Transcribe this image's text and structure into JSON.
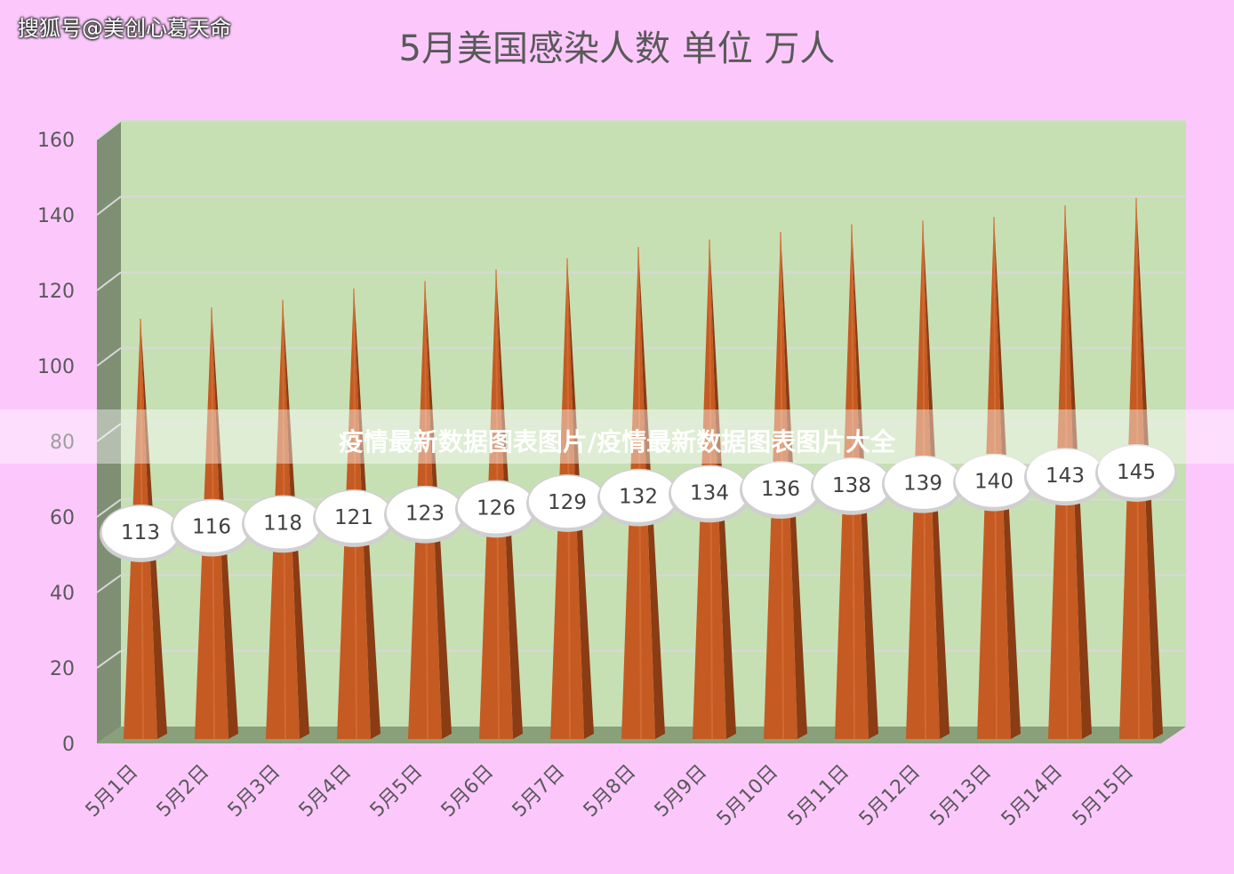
{
  "watermark": "搜狐号@美创心葛天命",
  "banner": "疫情最新数据图表图片/疫情最新数据图表图片大全",
  "chart_data": {
    "type": "bar",
    "title": "5月美国感染人数 单位 万人",
    "categories": [
      "5月1日",
      "5月2日",
      "5月3日",
      "5月4日",
      "5月5日",
      "5月6日",
      "5月7日",
      "5月8日",
      "5月9日",
      "5月10日",
      "5月11日",
      "5月12日",
      "5月13日",
      "5月14日",
      "5月15日"
    ],
    "values": [
      113,
      116,
      118,
      121,
      123,
      126,
      129,
      132,
      134,
      136,
      138,
      139,
      140,
      143,
      145
    ],
    "data_labels": [
      "113",
      "116",
      "118",
      "121",
      "123",
      "126",
      "129",
      "132",
      "134",
      "136",
      "138",
      "139",
      "140",
      "143",
      "145"
    ],
    "yticks": [
      "0",
      "20",
      "40",
      "60",
      "80",
      "100",
      "120",
      "140",
      "160"
    ],
    "ylim": [
      0,
      160
    ],
    "grid": true,
    "legend": "none",
    "bar_shape": "cone",
    "colors": {
      "plot_back": "#c6e0b4",
      "side_wall": "#7f8f74",
      "floor": "#8aa07a",
      "bar_front": "#c55a22",
      "bar_side": "#8a3c14",
      "label_bg": "#ffffff",
      "gridline": "#d8d8d8"
    }
  }
}
